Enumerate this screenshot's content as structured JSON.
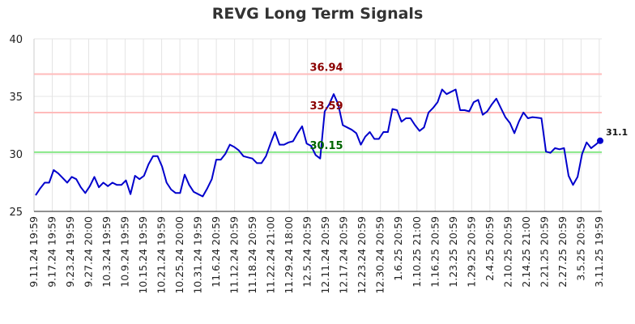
{
  "chart_data": {
    "type": "line",
    "title": "REVG Long Term Signals",
    "ylim": [
      25,
      40
    ],
    "yticks": [
      25,
      30,
      35,
      40
    ],
    "grid": true,
    "x_tick_labels": [
      "9.11.24 19:59",
      "9.17.24 19:59",
      "9.23.24 19:59",
      "9.27.24 20:00",
      "10.3.24 19:59",
      "10.9.24 19:59",
      "10.15.24 19:59",
      "10.21.24 19:59",
      "10.25.24 20:00",
      "10.31.24 19:59",
      "11.6.24 20:59",
      "11.12.24 20:59",
      "11.18.24 20:59",
      "11.22.24 21:00",
      "11.29.24 18:00",
      "12.5.24 20:59",
      "12.11.24 20:59",
      "12.17.24 20:59",
      "12.23.24 20:59",
      "12.30.24 20:59",
      "1.6.25 20:59",
      "1.10.25 21:00",
      "1.16.25 20:59",
      "1.23.25 20:59",
      "1.29.25 20:59",
      "2.4.25 20:59",
      "2.10.25 20:59",
      "2.14.25 21:00",
      "2.21.25 20:59",
      "2.27.25 20:59",
      "3.5.25 20:59",
      "3.11.25 19:59"
    ],
    "series": [
      {
        "color": "#0000cc",
        "values": [
          26.4,
          27.0,
          27.5,
          27.5,
          28.6,
          28.3,
          27.9,
          27.5,
          28.0,
          27.8,
          27.1,
          26.6,
          27.2,
          28.0,
          27.1,
          27.5,
          27.2,
          27.5,
          27.3,
          27.3,
          27.7,
          26.5,
          28.1,
          27.8,
          28.1,
          29.1,
          29.8,
          29.8,
          28.9,
          27.5,
          26.9,
          26.6,
          26.6,
          28.2,
          27.3,
          26.7,
          26.5,
          26.3,
          27.0,
          27.8,
          29.5,
          29.5,
          30.0,
          30.8,
          30.6,
          30.3,
          29.8,
          29.7,
          29.6,
          29.2,
          29.2,
          29.8,
          30.9,
          31.9,
          30.8,
          30.8,
          31.0,
          31.1,
          31.8,
          32.4,
          30.9,
          30.7,
          29.9,
          29.6,
          33.7,
          34.3,
          35.2,
          34.3,
          32.5,
          32.3,
          32.1,
          31.8,
          30.8,
          31.5,
          31.9,
          31.3,
          31.3,
          31.9,
          31.9,
          33.9,
          33.8,
          32.8,
          33.1,
          33.1,
          32.5,
          32.0,
          32.3,
          33.6,
          34.0,
          34.5,
          35.6,
          35.2,
          35.4,
          35.6,
          33.8,
          33.8,
          33.7,
          34.5,
          34.7,
          33.4,
          33.7,
          34.3,
          34.8,
          34.0,
          33.2,
          32.7,
          31.8,
          32.8,
          33.6,
          33.1,
          33.2,
          33.15,
          33.1,
          30.2,
          30.1,
          30.5,
          30.4,
          30.5,
          28.1,
          27.3,
          28.0,
          30.0,
          31.0,
          30.5,
          30.8,
          31.14
        ]
      }
    ],
    "horizontal_lines": [
      {
        "value": 36.94,
        "label": "36.94",
        "line_color": "#ffbbbb",
        "label_color": "#8b0000"
      },
      {
        "value": 33.59,
        "label": "33.59",
        "line_color": "#ffbbbb",
        "label_color": "#8b0000"
      },
      {
        "value": 30.15,
        "label": "30.15",
        "line_color": "#88e888",
        "label_color": "#006400"
      }
    ],
    "last_value_label": "31.1"
  }
}
